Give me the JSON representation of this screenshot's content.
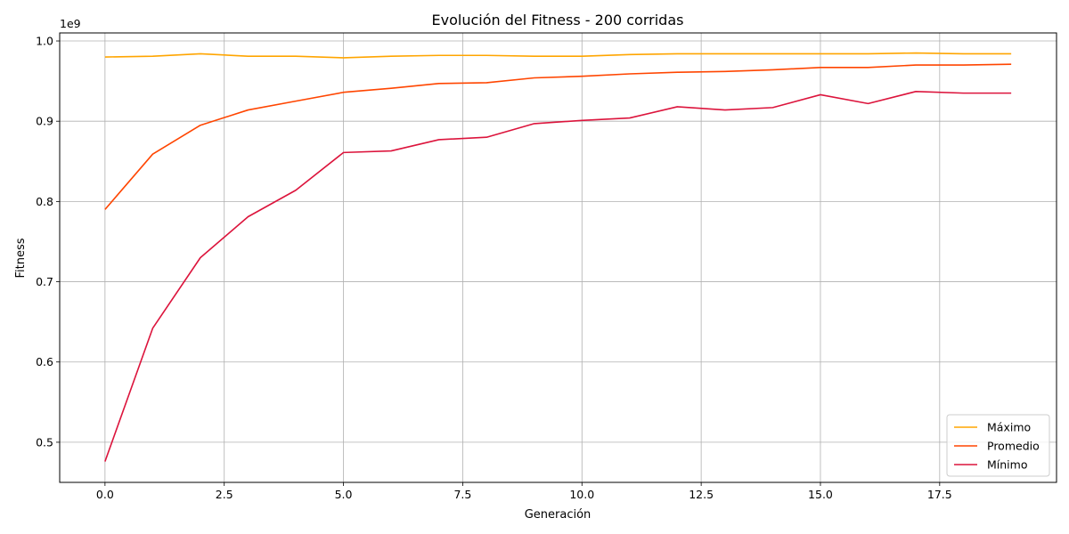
{
  "chart_data": {
    "type": "line",
    "title": "Evolución del Fitness - 200 corridas",
    "xlabel": "Generación",
    "ylabel": "Fitness",
    "y_offset_label": "1e9",
    "xlim": [
      -0.95,
      19.95
    ],
    "ylim": [
      0.45,
      1.01
    ],
    "x_ticks": [
      0.0,
      2.5,
      5.0,
      7.5,
      10.0,
      12.5,
      15.0,
      17.5
    ],
    "x_tick_labels": [
      "0.0",
      "2.5",
      "5.0",
      "7.5",
      "10.0",
      "12.5",
      "15.0",
      "17.5"
    ],
    "y_ticks": [
      0.5,
      0.6,
      0.7,
      0.8,
      0.9,
      1.0
    ],
    "y_tick_labels": [
      "0.5",
      "0.6",
      "0.7",
      "0.8",
      "0.9",
      "1.0"
    ],
    "grid": true,
    "legend_position": "lower-right",
    "x": [
      0,
      1,
      2,
      3,
      4,
      5,
      6,
      7,
      8,
      9,
      10,
      11,
      12,
      13,
      14,
      15,
      16,
      17,
      18,
      19
    ],
    "series": [
      {
        "name": "Máximo",
        "color": "#ffa500",
        "values": [
          0.98,
          0.981,
          0.984,
          0.981,
          0.981,
          0.979,
          0.981,
          0.982,
          0.982,
          0.981,
          0.981,
          0.983,
          0.984,
          0.984,
          0.984,
          0.984,
          0.984,
          0.985,
          0.984,
          0.984
        ]
      },
      {
        "name": "Promedio",
        "color": "#ff4500",
        "values": [
          0.79,
          0.859,
          0.895,
          0.914,
          0.925,
          0.936,
          0.941,
          0.947,
          0.948,
          0.954,
          0.956,
          0.959,
          0.961,
          0.962,
          0.964,
          0.967,
          0.967,
          0.97,
          0.97,
          0.971
        ]
      },
      {
        "name": "Mínimo",
        "color": "#dc143c",
        "values": [
          0.476,
          0.642,
          0.73,
          0.781,
          0.814,
          0.861,
          0.863,
          0.877,
          0.88,
          0.897,
          0.901,
          0.904,
          0.918,
          0.914,
          0.917,
          0.933,
          0.922,
          0.937,
          0.935,
          0.935
        ]
      }
    ]
  }
}
